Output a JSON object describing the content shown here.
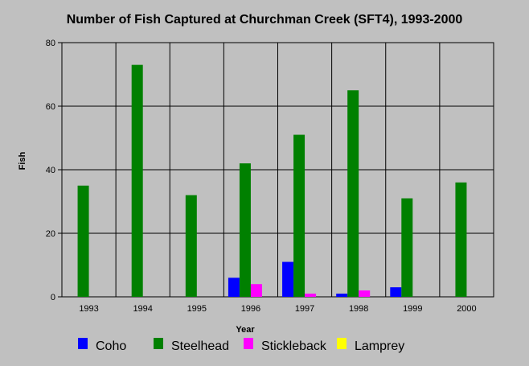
{
  "chart_data": {
    "type": "bar",
    "title": "Number of Fish Captured at Churchman Creek (SFT4), 1993-2000",
    "xlabel": "Year",
    "ylabel": "Fish",
    "ylim": [
      0,
      80
    ],
    "yticks": [
      0,
      20,
      40,
      60,
      80
    ],
    "grid": true,
    "legend_position": "bottom",
    "categories": [
      "1993",
      "1994",
      "1995",
      "1996",
      "1997",
      "1998",
      "1999",
      "2000"
    ],
    "series": [
      {
        "name": "Coho",
        "color": "#0000ff",
        "values": [
          0,
          0,
          0,
          6,
          11,
          1,
          3,
          0
        ]
      },
      {
        "name": "Steelhead",
        "color": "#008000",
        "values": [
          35,
          73,
          32,
          42,
          51,
          65,
          31,
          36
        ]
      },
      {
        "name": "Stickleback",
        "color": "#ff00ff",
        "values": [
          0,
          0,
          0,
          4,
          1,
          2,
          0,
          0
        ]
      },
      {
        "name": "Lamprey",
        "color": "#ffff00",
        "values": [
          0,
          0,
          0,
          0,
          0,
          0,
          0,
          0
        ]
      }
    ]
  }
}
